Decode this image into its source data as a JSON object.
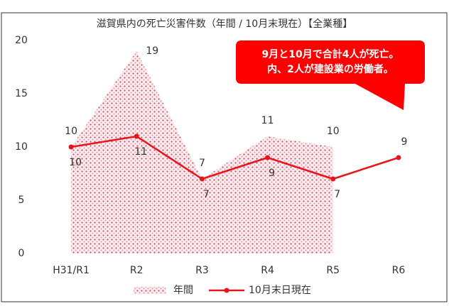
{
  "chart_data": {
    "type": "line",
    "title": "滋賀県内の死亡災害件数（年間 / 10月末現在）【全業種】",
    "annotation": [
      "9月と10月で合計4人が死亡。",
      "内、2人が建設業の労働者。"
    ],
    "annotation_color": "#ff0000",
    "categories": [
      "H31/R1",
      "R2",
      "R3",
      "R4",
      "R5",
      "R6"
    ],
    "series": [
      {
        "name": "年間",
        "type": "area",
        "color": "#e06070",
        "values": [
          10,
          19,
          7,
          11,
          10,
          null
        ]
      },
      {
        "name": "10月末日現在",
        "type": "line",
        "color": "#e8141b",
        "values": [
          10,
          11,
          7,
          9,
          7,
          9
        ]
      }
    ],
    "ylim": [
      0,
      20
    ],
    "yticks": [
      0,
      5,
      10,
      15,
      20
    ],
    "grid": false,
    "legend": "bottom"
  }
}
